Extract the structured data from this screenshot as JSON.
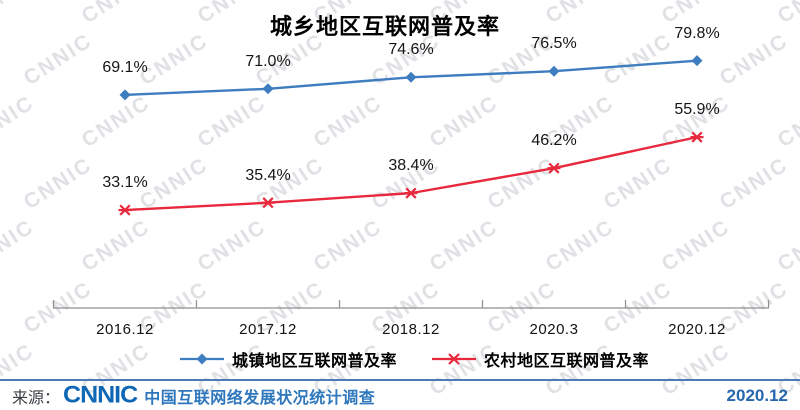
{
  "chart_data": {
    "type": "line",
    "title": "城乡地区互联网普及率",
    "categories": [
      "2016.12",
      "2017.12",
      "2018.12",
      "2020.3",
      "2020.12"
    ],
    "series": [
      {
        "name": "城镇地区互联网普及率",
        "values": [
          69.1,
          71.0,
          74.6,
          76.5,
          79.8
        ],
        "color": "#3e7dbf",
        "marker": "diamond"
      },
      {
        "name": "农村地区互联网普及率",
        "values": [
          33.1,
          35.4,
          38.4,
          46.2,
          55.9
        ],
        "color": "#e8283c",
        "marker": "asterisk"
      }
    ],
    "xlabel": "",
    "ylabel": "",
    "ylim": [
      0,
      100
    ],
    "grid": false,
    "legend_position": "bottom",
    "data_label_format": "0.0%"
  },
  "watermark": {
    "text": "CNNIC"
  },
  "footer": {
    "source_label": "来源：",
    "logo_text": "CNNIC",
    "survey_name": "中国互联网络发展状况统计调查",
    "date": "2020.12"
  },
  "colors": {
    "urban_line": "#3e7dbf",
    "rural_line": "#e8283c",
    "axis": "#8f8f8f",
    "footer_rule": "#4d7ab5",
    "brand_blue": "#0f68b6"
  }
}
